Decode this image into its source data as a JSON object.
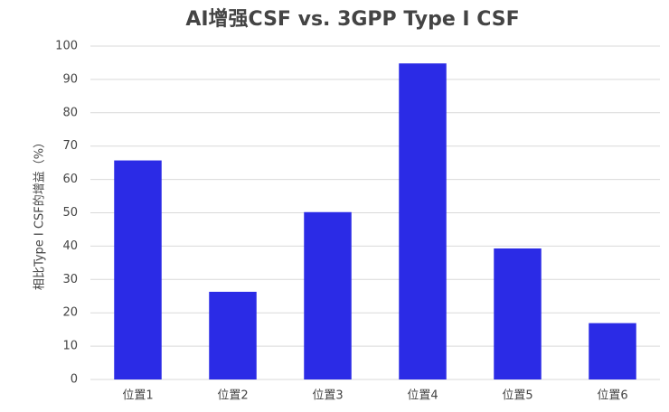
{
  "chart_data": {
    "type": "bar",
    "title": "AI增强CSF vs. 3GPP Type I CSF",
    "y_label": "相比Type I CSF的增益（%）",
    "categories": [
      "位置1",
      "位置2",
      "位置3",
      "位置4",
      "位置5",
      "位置6"
    ],
    "values": [
      65.7,
      26.3,
      50.2,
      94.8,
      39.3,
      16.9
    ],
    "color": "#2b2be6",
    "ylim": [
      0,
      100
    ],
    "yticks": [
      0,
      10,
      20,
      30,
      40,
      50,
      60,
      70,
      80,
      90,
      100
    ],
    "grid": true
  }
}
